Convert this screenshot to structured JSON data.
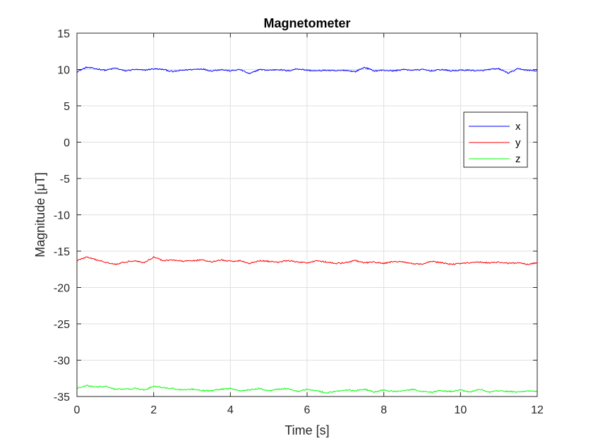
{
  "chart_data": {
    "type": "line",
    "title": "Magnetometer",
    "xlabel": "Time [s]",
    "ylabel": "Magnitude [μT]",
    "xlim": [
      0,
      12
    ],
    "ylim": [
      -35,
      15
    ],
    "x_ticks": [
      "0",
      "2",
      "4",
      "6",
      "8",
      "10",
      "12"
    ],
    "y_ticks": [
      "15",
      "10",
      "5",
      "0",
      "-5",
      "-10",
      "-15",
      "-20",
      "-25",
      "-30",
      "-35"
    ],
    "grid": true,
    "legend_position": "top-right",
    "sample_interval_s": 0.02,
    "series": [
      {
        "name": "x",
        "color": "#0000ff",
        "x": [
          0,
          0.25,
          0.5,
          0.75,
          1,
          1.25,
          1.5,
          1.75,
          2,
          2.25,
          2.5,
          2.75,
          3,
          3.25,
          3.5,
          3.75,
          4,
          4.25,
          4.5,
          4.75,
          5,
          5.25,
          5.5,
          5.75,
          6,
          6.25,
          6.5,
          6.75,
          7,
          7.25,
          7.5,
          7.75,
          8,
          8.25,
          8.5,
          8.75,
          9,
          9.25,
          9.5,
          9.75,
          10,
          10.25,
          10.5,
          10.75,
          11,
          11.25,
          11.5,
          11.75,
          12
        ],
        "y": [
          9.7,
          10.3,
          10.1,
          9.9,
          10.2,
          9.8,
          10.0,
          9.9,
          10.1,
          10.0,
          9.7,
          9.9,
          10.0,
          10.1,
          9.8,
          10.0,
          9.8,
          10.0,
          9.4,
          10.0,
          9.9,
          10.0,
          9.8,
          10.1,
          9.9,
          9.8,
          9.9,
          9.8,
          9.9,
          9.7,
          10.3,
          9.8,
          9.9,
          9.8,
          10.0,
          9.9,
          10.0,
          9.8,
          10.0,
          9.8,
          9.9,
          9.9,
          9.8,
          10.0,
          10.1,
          9.5,
          10.1,
          9.9,
          9.8
        ]
      },
      {
        "name": "y",
        "color": "#ff0000",
        "x": [
          0,
          0.25,
          0.5,
          0.75,
          1,
          1.25,
          1.5,
          1.75,
          2,
          2.25,
          2.5,
          2.75,
          3,
          3.25,
          3.5,
          3.75,
          4,
          4.25,
          4.5,
          4.75,
          5,
          5.25,
          5.5,
          5.75,
          6,
          6.25,
          6.5,
          6.75,
          7,
          7.25,
          7.5,
          7.75,
          8,
          8.25,
          8.5,
          8.75,
          9,
          9.25,
          9.5,
          9.75,
          10,
          10.25,
          10.5,
          10.75,
          11,
          11.25,
          11.5,
          11.75,
          12
        ],
        "y": [
          -16.3,
          -15.8,
          -16.2,
          -16.5,
          -16.8,
          -16.5,
          -16.3,
          -16.6,
          -15.8,
          -16.3,
          -16.2,
          -16.4,
          -16.3,
          -16.2,
          -16.5,
          -16.2,
          -16.4,
          -16.3,
          -16.7,
          -16.3,
          -16.4,
          -16.5,
          -16.3,
          -16.5,
          -16.6,
          -16.3,
          -16.5,
          -16.7,
          -16.6,
          -16.3,
          -16.6,
          -16.5,
          -16.7,
          -16.4,
          -16.5,
          -16.7,
          -16.8,
          -16.4,
          -16.6,
          -16.8,
          -16.7,
          -16.6,
          -16.5,
          -16.6,
          -16.5,
          -16.7,
          -16.6,
          -16.8,
          -16.6
        ]
      },
      {
        "name": "z",
        "color": "#00ff00",
        "x": [
          0,
          0.25,
          0.5,
          0.75,
          1,
          1.25,
          1.5,
          1.75,
          2,
          2.25,
          2.5,
          2.75,
          3,
          3.25,
          3.5,
          3.75,
          4,
          4.25,
          4.5,
          4.75,
          5,
          5.25,
          5.5,
          5.75,
          6,
          6.25,
          6.5,
          6.75,
          7,
          7.25,
          7.5,
          7.75,
          8,
          8.25,
          8.5,
          8.75,
          9,
          9.25,
          9.5,
          9.75,
          10,
          10.25,
          10.5,
          10.75,
          11,
          11.25,
          11.5,
          11.75,
          12
        ],
        "y": [
          -33.9,
          -33.5,
          -33.7,
          -33.6,
          -34.0,
          -34.0,
          -33.9,
          -34.1,
          -33.6,
          -33.8,
          -33.9,
          -34.1,
          -34.0,
          -34.2,
          -34.2,
          -34.0,
          -33.9,
          -34.2,
          -34.1,
          -33.9,
          -34.2,
          -34.0,
          -33.9,
          -34.3,
          -34.0,
          -34.2,
          -34.5,
          -34.3,
          -34.1,
          -34.2,
          -34.0,
          -34.4,
          -34.1,
          -34.3,
          -34.2,
          -34.0,
          -34.3,
          -34.4,
          -34.2,
          -34.3,
          -34.1,
          -34.4,
          -34.0,
          -34.4,
          -34.2,
          -34.3,
          -34.4,
          -34.2,
          -34.3
        ]
      }
    ]
  }
}
